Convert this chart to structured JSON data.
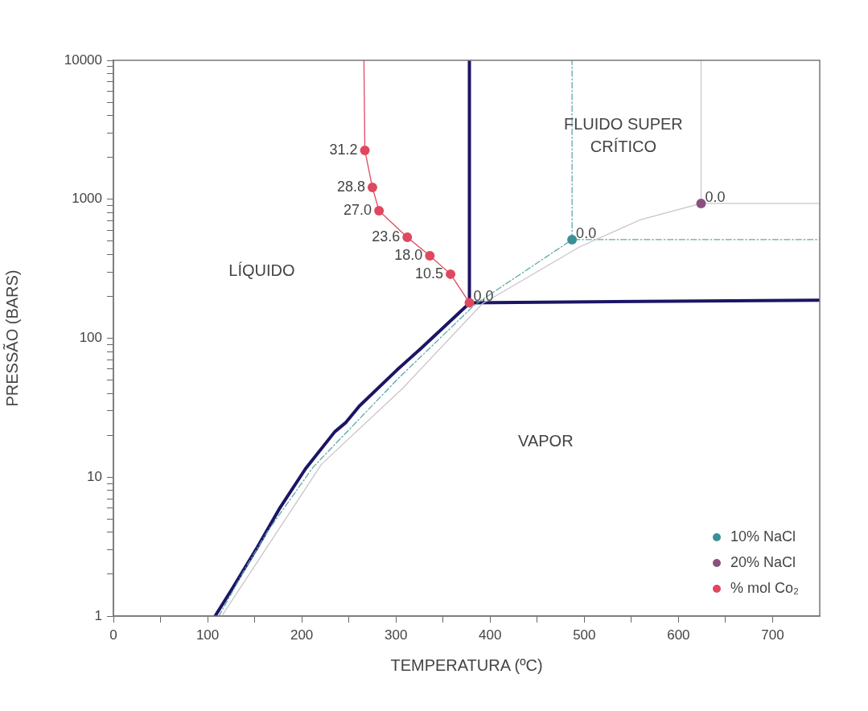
{
  "chart_data": {
    "type": "scatter",
    "xlabel": "TEMPERATURA (ºC)",
    "ylabel": "PRESSÃO (BARS)",
    "xlim": [
      0,
      750
    ],
    "ylim": [
      1,
      10000
    ],
    "log": "y",
    "grid": false,
    "legend": "bottom right",
    "marker": "circle",
    "xticks": [
      0,
      {
        "value": 50,
        "label": null
      },
      100,
      {
        "value": 150,
        "label": null
      },
      200,
      {
        "value": 250,
        "label": null
      },
      300,
      {
        "value": 350,
        "label": null
      },
      400,
      {
        "value": 450,
        "label": null
      },
      500,
      {
        "value": 550,
        "label": null
      },
      600,
      {
        "value": 650,
        "label": null
      },
      700
    ],
    "yticks": [
      1,
      {
        "value": 2,
        "label": null
      },
      {
        "value": 3,
        "label": null
      },
      {
        "value": 4,
        "label": null
      },
      {
        "value": 5,
        "label": null
      },
      {
        "value": 6,
        "label": null
      },
      {
        "value": 7,
        "label": null
      },
      {
        "value": 8,
        "label": null
      },
      {
        "value": 9,
        "label": null
      },
      10,
      {
        "value": 20,
        "label": null
      },
      {
        "value": 30,
        "label": null
      },
      {
        "value": 40,
        "label": null
      },
      {
        "value": 50,
        "label": null
      },
      {
        "value": 60,
        "label": null
      },
      {
        "value": 70,
        "label": null
      },
      {
        "value": 80,
        "label": null
      },
      {
        "value": 90,
        "label": null
      },
      100,
      {
        "value": 200,
        "label": null
      },
      {
        "value": 300,
        "label": null
      },
      {
        "value": 400,
        "label": null
      },
      {
        "value": 500,
        "label": null
      },
      {
        "value": 600,
        "label": null
      },
      {
        "value": 700,
        "label": null
      },
      {
        "value": 800,
        "label": null
      },
      {
        "value": 900,
        "label": null
      },
      1000,
      {
        "value": 2000,
        "label": null
      },
      {
        "value": 3000,
        "label": null
      },
      {
        "value": 4000,
        "label": null
      },
      {
        "value": 5000,
        "label": null
      },
      {
        "value": 6000,
        "label": null
      },
      {
        "value": 7000,
        "label": null
      },
      {
        "value": 8000,
        "label": null
      },
      {
        "value": 9000,
        "label": null
      },
      10000
    ],
    "series": [
      {
        "type": "line",
        "color": "#cbc3c8",
        "line_style": "solid",
        "marker": "none",
        "x": [
          115,
          221,
          307,
          392,
          403,
          495,
          560,
          624,
          750
        ],
        "values": [
          1,
          12.4,
          43.5,
          178,
          196,
          454,
          714,
          933,
          933
        ]
      },
      {
        "type": "line",
        "color": "#cbc3c8",
        "line_style": "solid",
        "marker": "none",
        "x": [
          624,
          624
        ],
        "values": [
          933,
          10000
        ]
      },
      {
        "type": "line",
        "color": "#5aa9a8",
        "line_style": "dashed",
        "marker": "none",
        "x": [
          112,
          140,
          165,
          212,
          302,
          384,
          487,
          750
        ],
        "values": [
          1,
          2.2,
          4.2,
          11.8,
          51,
          175,
          512,
          512
        ]
      },
      {
        "type": "line",
        "color": "#5aa9a8",
        "line_style": "dashed",
        "marker": "none",
        "x": [
          487,
          487
        ],
        "values": [
          512,
          10000
        ]
      },
      {
        "type": "line",
        "color": "#1c1565",
        "line_style": "solid",
        "marker": "none",
        "x": [
          108,
          127,
          153,
          176,
          204,
          235,
          247,
          261,
          301,
          327,
          375,
          378,
          378
        ],
        "values": [
          1,
          1.61,
          3.15,
          5.89,
          11.5,
          21.2,
          24.8,
          32.4,
          59,
          85,
          171,
          180,
          10000
        ]
      },
      {
        "type": "line",
        "color": "#1c1565",
        "line_style": "solid",
        "marker": "none",
        "x": [
          378,
          750
        ],
        "values": [
          180,
          188
        ]
      },
      {
        "type": "line",
        "color": "#e0485f",
        "line_style": "solid",
        "marker": "none",
        "x": [
          266,
          267,
          275,
          282,
          312,
          336,
          358,
          378
        ],
        "values": [
          10000,
          2250,
          1217,
          828,
          533,
          392,
          289,
          180
        ]
      },
      {
        "name": "10% NaCl",
        "color": "#3a8f9a",
        "x": [
          487
        ],
        "values": [
          512
        ]
      },
      {
        "name": "20% NaCl",
        "color": "#8b5080",
        "x": [
          624
        ],
        "values": [
          933
        ]
      },
      {
        "name": "% mol Co₂",
        "color": "#e0485f",
        "x": [
          267,
          275,
          282,
          312,
          336,
          358,
          378
        ],
        "values": [
          2250,
          1217,
          828,
          533,
          392,
          289,
          180
        ]
      }
    ],
    "annotations": [
      {
        "text": "31.2",
        "x": 267,
        "y": 2250
      },
      {
        "text": "28.8",
        "x": 275,
        "y": 1217
      },
      {
        "text": "27.0",
        "x": 282,
        "y": 828
      },
      {
        "text": "23.6",
        "x": 312,
        "y": 533
      },
      {
        "text": "18.0",
        "x": 336,
        "y": 392
      },
      {
        "text": "10.5",
        "x": 358,
        "y": 289
      },
      {
        "text": "0.0",
        "x": 378,
        "y": 180
      },
      {
        "text": "0.0",
        "x": 487,
        "y": 512
      },
      {
        "text": "0.0",
        "x": 624,
        "y": 933
      },
      "LÍQUIDO",
      "FLUIDO SUPER\nCRÍTICO",
      "VAPOR"
    ]
  }
}
